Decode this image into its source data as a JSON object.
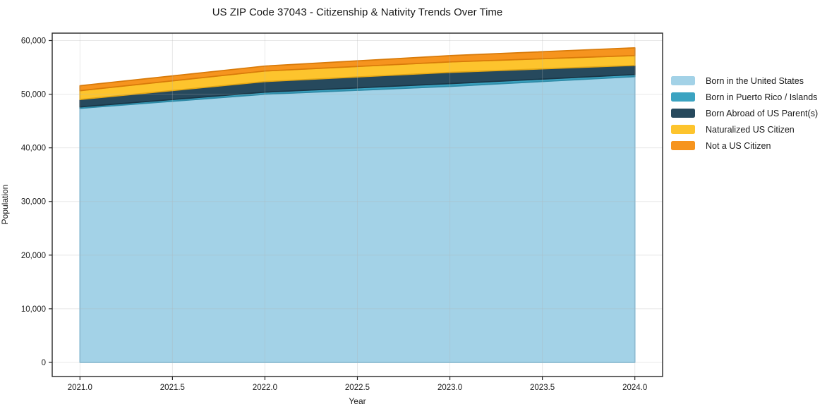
{
  "figure": {
    "title": "US ZIP Code 37043 - Citizenship & Nativity Trends Over Time",
    "xlabel": "Year",
    "ylabel": "Population"
  },
  "chart_data": {
    "type": "area",
    "stacked": true,
    "title": "US ZIP Code 37043 - Citizenship & Nativity Trends Over Time",
    "xlabel": "Year",
    "ylabel": "Population",
    "x": [
      2021,
      2022,
      2023,
      2024
    ],
    "series": [
      {
        "name": "Born in the United States",
        "color": "#a3d2e7",
        "edge": "#85bdd9",
        "values": [
          47370,
          50000,
          51450,
          53270
        ]
      },
      {
        "name": "Born in Puerto Rico / Islands",
        "color": "#3ba3c1",
        "edge": "#2e8aa6",
        "values": [
          260,
          380,
          520,
          390
        ]
      },
      {
        "name": "Born Abroad of US Parent(s)",
        "color": "#26495d",
        "edge": "#1a3646",
        "values": [
          1380,
          1970,
          2100,
          1710
        ]
      },
      {
        "name": "Naturalized US Citizen",
        "color": "#fdc42d",
        "edge": "#e5a714",
        "values": [
          1640,
          1970,
          1950,
          1830
        ]
      },
      {
        "name": "Not a US Citizen",
        "color": "#f6941e",
        "edge": "#d87a09",
        "values": [
          930,
          920,
          1170,
          1450
        ]
      }
    ],
    "xlim": [
      2020.85,
      2024.15
    ],
    "ylim": [
      -2630,
      61380
    ],
    "xticks": {
      "values": [
        2021.0,
        2021.5,
        2022.0,
        2022.5,
        2023.0,
        2023.5,
        2024.0
      ],
      "labels": [
        "2021.0",
        "2021.5",
        "2022.0",
        "2022.5",
        "2023.0",
        "2023.5",
        "2024.0"
      ]
    },
    "yticks": {
      "values": [
        0,
        10000,
        20000,
        30000,
        40000,
        50000,
        60000
      ],
      "labels": [
        "0",
        "10,000",
        "20,000",
        "30,000",
        "40,000",
        "50,000",
        "60,000"
      ]
    },
    "grid": true,
    "grid_color": "#b4b4b4",
    "grid_opacity": 0.3,
    "spine_color": "#262626",
    "tick_label_color": "#1a1a1a",
    "legend_position": "right of axes"
  }
}
